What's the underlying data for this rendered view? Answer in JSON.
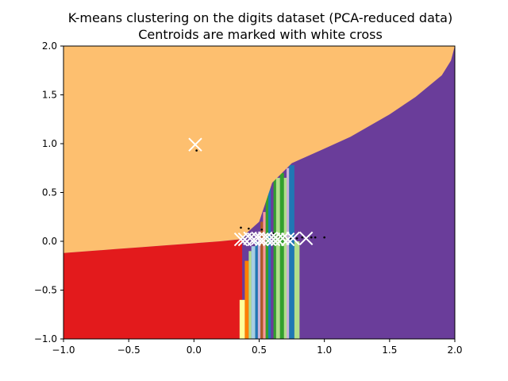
{
  "chart_data": {
    "type": "heatmap",
    "title": "K-means clustering on the digits dataset (PCA-reduced data)",
    "subtitle": "Centroids are marked with white cross",
    "xlabel": "",
    "ylabel": "",
    "xlim": [
      -1.0,
      2.0
    ],
    "ylim": [
      -1.0,
      2.0
    ],
    "xticks": [
      "−1.0",
      "−0.5",
      "0.0",
      "0.5",
      "1.0",
      "1.5",
      "2.0"
    ],
    "yticks": [
      "−1.0",
      "−0.5",
      "0.0",
      "0.5",
      "1.0",
      "1.5",
      "2.0"
    ],
    "grid": false,
    "colors": {
      "orange": "#fdbf6f",
      "purple": "#6a3d9a",
      "red": "#e31a1c",
      "blue": "#1f78b4",
      "green": "#33a02c",
      "light_green": "#b2df8a",
      "light_blue": "#a6cee3",
      "yellow": "#ffff99",
      "lavender": "#cab2d6",
      "brown": "#b15928",
      "dark_orange": "#ff7f00",
      "pink": "#fb9a99",
      "centroid": "#ffffff",
      "points": "#000000"
    },
    "regions": {
      "orange_boundary": [
        [
          -1.0,
          2.0
        ],
        [
          -1.0,
          -0.12
        ],
        [
          -0.8,
          -0.1
        ],
        [
          -0.6,
          -0.08
        ],
        [
          -0.4,
          -0.06
        ],
        [
          -0.2,
          -0.04
        ],
        [
          0.0,
          -0.02
        ],
        [
          0.2,
          0.0
        ],
        [
          0.35,
          0.02
        ],
        [
          0.5,
          0.2
        ],
        [
          0.6,
          0.6
        ],
        [
          0.75,
          0.8
        ],
        [
          1.0,
          0.95
        ],
        [
          1.2,
          1.07
        ],
        [
          1.5,
          1.3
        ],
        [
          1.7,
          1.48
        ],
        [
          1.9,
          1.7
        ],
        [
          1.97,
          1.85
        ],
        [
          2.0,
          2.0
        ]
      ],
      "red_top": [
        [
          -1.0,
          -0.12
        ],
        [
          -0.8,
          -0.1
        ],
        [
          -0.6,
          -0.08
        ],
        [
          -0.4,
          -0.06
        ],
        [
          -0.2,
          -0.04
        ],
        [
          0.0,
          -0.02
        ],
        [
          0.2,
          0.0
        ],
        [
          0.37,
          0.02
        ]
      ],
      "mixed_strips": [
        {
          "x0": 0.35,
          "x1": 0.39,
          "top": -0.6,
          "color": "yellow"
        },
        {
          "x0": 0.39,
          "x1": 0.42,
          "top": -0.2,
          "color": "dark_orange"
        },
        {
          "x0": 0.42,
          "x1": 0.44,
          "top": -0.1,
          "color": "light_green"
        },
        {
          "x0": 0.44,
          "x1": 0.47,
          "top": -0.05,
          "color": "light_blue"
        },
        {
          "x0": 0.47,
          "x1": 0.49,
          "top": 0.0,
          "color": "blue"
        },
        {
          "x0": 0.49,
          "x1": 0.51,
          "top": 0.1,
          "color": "lavender"
        },
        {
          "x0": 0.51,
          "x1": 0.53,
          "top": 0.2,
          "color": "brown"
        },
        {
          "x0": 0.53,
          "x1": 0.55,
          "top": 0.3,
          "color": "pink"
        },
        {
          "x0": 0.55,
          "x1": 0.57,
          "top": 0.55,
          "color": "green"
        },
        {
          "x0": 0.57,
          "x1": 0.59,
          "top": 0.65,
          "color": "blue"
        },
        {
          "x0": 0.59,
          "x1": 0.61,
          "top": 0.7,
          "color": "purple"
        },
        {
          "x0": 0.61,
          "x1": 0.63,
          "top": 0.7,
          "color": "green"
        },
        {
          "x0": 0.63,
          "x1": 0.66,
          "top": 0.65,
          "color": "light_green"
        },
        {
          "x0": 0.66,
          "x1": 0.69,
          "top": 0.7,
          "color": "green"
        },
        {
          "x0": 0.69,
          "x1": 0.71,
          "top": 0.65,
          "color": "light_green"
        },
        {
          "x0": 0.71,
          "x1": 0.73,
          "top": 0.75,
          "color": "lavender"
        },
        {
          "x0": 0.73,
          "x1": 0.77,
          "top": 0.78,
          "color": "blue"
        },
        {
          "x0": 0.77,
          "x1": 0.81,
          "top": 0.0,
          "color": "light_green"
        },
        {
          "x0": 0.81,
          "x1": 0.86,
          "top": 0.0,
          "color": "purple"
        }
      ]
    },
    "centroids": [
      [
        0.01,
        0.99
      ],
      [
        0.36,
        0.02
      ],
      [
        0.39,
        0.02
      ],
      [
        0.43,
        0.03
      ],
      [
        0.46,
        0.02
      ],
      [
        0.49,
        0.03
      ],
      [
        0.52,
        0.02
      ],
      [
        0.55,
        0.03
      ],
      [
        0.58,
        0.02
      ],
      [
        0.61,
        0.02
      ],
      [
        0.64,
        0.02
      ],
      [
        0.68,
        0.03
      ],
      [
        0.72,
        0.02
      ],
      [
        0.76,
        0.03
      ],
      [
        0.86,
        0.03
      ]
    ],
    "points": [
      [
        0.02,
        0.93
      ],
      [
        0.36,
        0.14
      ],
      [
        0.38,
        0.04
      ],
      [
        0.41,
        0.05
      ],
      [
        0.45,
        0.06
      ],
      [
        0.5,
        0.05
      ],
      [
        0.55,
        0.04
      ],
      [
        0.6,
        0.05
      ],
      [
        0.65,
        0.04
      ],
      [
        0.7,
        0.04
      ],
      [
        0.74,
        0.03
      ],
      [
        0.79,
        0.03
      ],
      [
        0.83,
        0.04
      ],
      [
        0.87,
        0.04
      ],
      [
        0.9,
        0.04
      ],
      [
        0.93,
        0.04
      ],
      [
        1.0,
        0.04
      ],
      [
        0.42,
        0.13
      ],
      [
        0.52,
        0.12
      ],
      [
        0.61,
        0.08
      ]
    ]
  }
}
